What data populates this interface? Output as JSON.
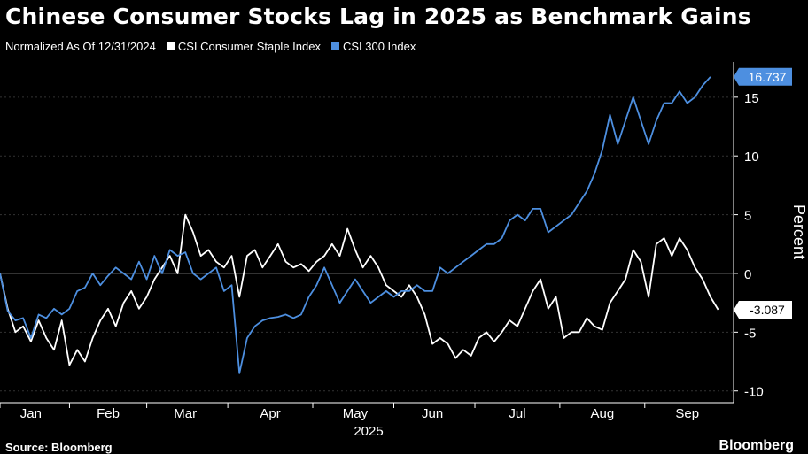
{
  "title": "Chinese Consumer Stocks Lag in 2025 as Benchmark Gains",
  "subtitle": "Normalized As Of 12/31/2024",
  "source": "Source: Bloomberg",
  "brand": "Bloomberg",
  "colors": {
    "background": "#000000",
    "consumer": "#ffffff",
    "csi300": "#4d8fe0",
    "axis": "#ffffff",
    "grid": "#3a3a3a"
  },
  "chart_data": {
    "type": "line",
    "xlabel": "2025",
    "ylabel": "Percent",
    "ylim": [
      -11,
      18
    ],
    "yticks": [
      -10,
      -5,
      0,
      5,
      10,
      15
    ],
    "grid": "horizontal",
    "legend_position": "top-left",
    "x_range": [
      0,
      190
    ],
    "months": [
      {
        "label": "Jan",
        "x": 8
      },
      {
        "label": "Feb",
        "x": 28
      },
      {
        "label": "Mar",
        "x": 48
      },
      {
        "label": "Apr",
        "x": 70
      },
      {
        "label": "May",
        "x": 92
      },
      {
        "label": "Jun",
        "x": 112
      },
      {
        "label": "Jul",
        "x": 134
      },
      {
        "label": "Aug",
        "x": 156
      },
      {
        "label": "Sep",
        "x": 178
      }
    ],
    "series": [
      {
        "name": "CSI Consumer Staple Index",
        "color": "#ffffff",
        "last_value": "-3.087",
        "points": [
          [
            0,
            0
          ],
          [
            2,
            -3
          ],
          [
            4,
            -5
          ],
          [
            6,
            -4.5
          ],
          [
            8,
            -5.8
          ],
          [
            10,
            -4
          ],
          [
            12,
            -5.5
          ],
          [
            14,
            -6.5
          ],
          [
            16,
            -4
          ],
          [
            18,
            -7.8
          ],
          [
            20,
            -6.5
          ],
          [
            22,
            -7.5
          ],
          [
            24,
            -5.5
          ],
          [
            26,
            -4
          ],
          [
            28,
            -3
          ],
          [
            30,
            -4.5
          ],
          [
            32,
            -2.5
          ],
          [
            34,
            -1.5
          ],
          [
            36,
            -3
          ],
          [
            38,
            -2
          ],
          [
            40,
            -0.5
          ],
          [
            42,
            0.5
          ],
          [
            44,
            1.5
          ],
          [
            46,
            0
          ],
          [
            48,
            5
          ],
          [
            50,
            3.5
          ],
          [
            52,
            1.5
          ],
          [
            54,
            2
          ],
          [
            56,
            1
          ],
          [
            58,
            0.5
          ],
          [
            60,
            1.5
          ],
          [
            62,
            -2
          ],
          [
            64,
            1.5
          ],
          [
            66,
            2
          ],
          [
            68,
            0.5
          ],
          [
            70,
            1.5
          ],
          [
            72,
            2.5
          ],
          [
            74,
            1
          ],
          [
            76,
            0.5
          ],
          [
            78,
            0.8
          ],
          [
            80,
            0.2
          ],
          [
            82,
            1
          ],
          [
            84,
            1.5
          ],
          [
            86,
            2.5
          ],
          [
            88,
            1.5
          ],
          [
            90,
            3.8
          ],
          [
            92,
            2
          ],
          [
            94,
            0.5
          ],
          [
            96,
            1.5
          ],
          [
            98,
            0.5
          ],
          [
            100,
            -1
          ],
          [
            102,
            -1.5
          ],
          [
            104,
            -2
          ],
          [
            106,
            -1
          ],
          [
            108,
            -2
          ],
          [
            110,
            -3.5
          ],
          [
            112,
            -6
          ],
          [
            114,
            -5.5
          ],
          [
            116,
            -6
          ],
          [
            118,
            -7.2
          ],
          [
            120,
            -6.5
          ],
          [
            122,
            -7
          ],
          [
            124,
            -5.5
          ],
          [
            126,
            -5
          ],
          [
            128,
            -5.8
          ],
          [
            130,
            -5
          ],
          [
            132,
            -4
          ],
          [
            134,
            -4.5
          ],
          [
            136,
            -3
          ],
          [
            138,
            -1.5
          ],
          [
            140,
            -0.5
          ],
          [
            142,
            -3
          ],
          [
            144,
            -2
          ],
          [
            146,
            -5.5
          ],
          [
            148,
            -5
          ],
          [
            150,
            -5
          ],
          [
            152,
            -3.8
          ],
          [
            154,
            -4.5
          ],
          [
            156,
            -4.8
          ],
          [
            158,
            -2.5
          ],
          [
            160,
            -1.5
          ],
          [
            162,
            -0.5
          ],
          [
            164,
            2
          ],
          [
            166,
            1
          ],
          [
            168,
            -2
          ],
          [
            170,
            2.5
          ],
          [
            172,
            3
          ],
          [
            174,
            1.5
          ],
          [
            176,
            3
          ],
          [
            178,
            2
          ],
          [
            180,
            0.5
          ],
          [
            182,
            -0.5
          ],
          [
            184,
            -2
          ],
          [
            186,
            -3.087
          ]
        ]
      },
      {
        "name": "CSI 300 Index",
        "color": "#4d8fe0",
        "last_value": "16.737",
        "points": [
          [
            0,
            0
          ],
          [
            2,
            -3.2
          ],
          [
            4,
            -4
          ],
          [
            6,
            -3.8
          ],
          [
            8,
            -5.5
          ],
          [
            10,
            -3.5
          ],
          [
            12,
            -3.8
          ],
          [
            14,
            -3
          ],
          [
            16,
            -3.5
          ],
          [
            18,
            -3
          ],
          [
            20,
            -1.5
          ],
          [
            22,
            -1.2
          ],
          [
            24,
            0
          ],
          [
            26,
            -1
          ],
          [
            28,
            -0.2
          ],
          [
            30,
            0.5
          ],
          [
            32,
            0
          ],
          [
            34,
            -0.5
          ],
          [
            36,
            1
          ],
          [
            38,
            -0.5
          ],
          [
            40,
            1.5
          ],
          [
            42,
            0
          ],
          [
            44,
            2
          ],
          [
            46,
            1.5
          ],
          [
            48,
            1.8
          ],
          [
            50,
            0
          ],
          [
            52,
            -0.5
          ],
          [
            54,
            0
          ],
          [
            56,
            0.5
          ],
          [
            58,
            -1.5
          ],
          [
            60,
            -1
          ],
          [
            62,
            -8.5
          ],
          [
            64,
            -5.5
          ],
          [
            66,
            -4.5
          ],
          [
            68,
            -4
          ],
          [
            70,
            -3.8
          ],
          [
            72,
            -3.7
          ],
          [
            74,
            -3.5
          ],
          [
            76,
            -3.8
          ],
          [
            78,
            -3.5
          ],
          [
            80,
            -2
          ],
          [
            82,
            -1
          ],
          [
            84,
            0.5
          ],
          [
            86,
            -1
          ],
          [
            88,
            -2.5
          ],
          [
            90,
            -1.5
          ],
          [
            92,
            -0.5
          ],
          [
            94,
            -1.5
          ],
          [
            96,
            -2.5
          ],
          [
            98,
            -2
          ],
          [
            100,
            -1.5
          ],
          [
            102,
            -2
          ],
          [
            104,
            -1.5
          ],
          [
            106,
            -1.5
          ],
          [
            108,
            -1
          ],
          [
            110,
            -1.5
          ],
          [
            112,
            -1.5
          ],
          [
            114,
            0.5
          ],
          [
            116,
            0
          ],
          [
            118,
            0.5
          ],
          [
            120,
            1
          ],
          [
            122,
            1.5
          ],
          [
            124,
            2
          ],
          [
            126,
            2.5
          ],
          [
            128,
            2.5
          ],
          [
            130,
            3
          ],
          [
            132,
            4.5
          ],
          [
            134,
            5
          ],
          [
            136,
            4.5
          ],
          [
            138,
            5.5
          ],
          [
            140,
            5.5
          ],
          [
            142,
            3.5
          ],
          [
            144,
            4
          ],
          [
            146,
            4.5
          ],
          [
            148,
            5
          ],
          [
            150,
            6
          ],
          [
            152,
            7
          ],
          [
            154,
            8.5
          ],
          [
            156,
            10.5
          ],
          [
            158,
            13.5
          ],
          [
            160,
            11
          ],
          [
            162,
            13
          ],
          [
            164,
            15
          ],
          [
            166,
            13
          ],
          [
            168,
            11
          ],
          [
            170,
            13
          ],
          [
            172,
            14.5
          ],
          [
            174,
            14.5
          ],
          [
            176,
            15.5
          ],
          [
            178,
            14.5
          ],
          [
            180,
            15
          ],
          [
            182,
            16
          ],
          [
            184,
            16.737
          ]
        ]
      }
    ]
  }
}
